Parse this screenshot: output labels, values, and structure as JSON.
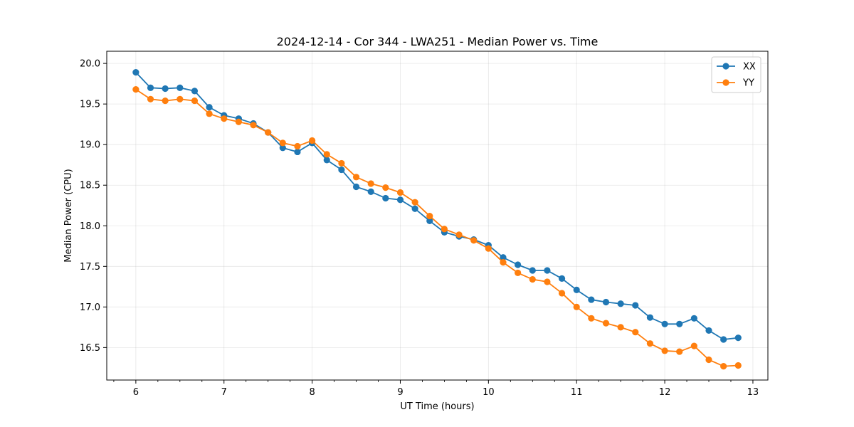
{
  "chart_data": {
    "type": "line",
    "title": "2024-12-14 - Cor 344 - LWA251 - Median Power vs. Time",
    "xlabel": "UT Time (hours)",
    "ylabel": "Median Power (CPU)",
    "xlim": [
      5.67,
      13.17
    ],
    "ylim": [
      16.1,
      20.15
    ],
    "xticks": [
      6,
      7,
      8,
      9,
      10,
      11,
      12,
      13
    ],
    "xtick_labels": [
      "6",
      "7",
      "8",
      "9",
      "10",
      "11",
      "12",
      "13"
    ],
    "xminor_step": 0.25,
    "yticks": [
      16.5,
      17.0,
      17.5,
      18.0,
      18.5,
      19.0,
      19.5,
      20.0
    ],
    "ytick_labels": [
      "16.5",
      "17.0",
      "17.5",
      "18.0",
      "18.5",
      "19.0",
      "19.5",
      "20.0"
    ],
    "grid": true,
    "legend_position": "top-right",
    "x": [
      6.0,
      6.1667,
      6.3333,
      6.5,
      6.6667,
      6.8333,
      7.0,
      7.1667,
      7.3333,
      7.5,
      7.6667,
      7.8333,
      8.0,
      8.1667,
      8.3333,
      8.5,
      8.6667,
      8.8333,
      9.0,
      9.1667,
      9.3333,
      9.5,
      9.6667,
      9.8333,
      10.0,
      10.1667,
      10.3333,
      10.5,
      10.6667,
      10.8333,
      11.0,
      11.1667,
      11.3333,
      11.5,
      11.6667,
      11.8333,
      12.0,
      12.1667,
      12.3333,
      12.5,
      12.6667,
      12.8333
    ],
    "series": [
      {
        "name": "XX",
        "color": "#1f77b4",
        "values": [
          19.89,
          19.7,
          19.69,
          19.7,
          19.66,
          19.46,
          19.36,
          19.32,
          19.26,
          19.15,
          18.96,
          18.91,
          19.02,
          18.81,
          18.69,
          18.48,
          18.42,
          18.34,
          18.32,
          18.21,
          18.06,
          17.92,
          17.87,
          17.83,
          17.76,
          17.61,
          17.52,
          17.45,
          17.45,
          17.35,
          17.21,
          17.09,
          17.06,
          17.04,
          17.02,
          16.87,
          16.79,
          16.79,
          16.86,
          16.71,
          16.6,
          16.62
        ]
      },
      {
        "name": "YY",
        "color": "#ff7f0e",
        "values": [
          19.68,
          19.56,
          19.54,
          19.56,
          19.54,
          19.38,
          19.32,
          19.28,
          19.24,
          19.15,
          19.02,
          18.98,
          19.05,
          18.88,
          18.77,
          18.6,
          18.52,
          18.47,
          18.41,
          18.29,
          18.12,
          17.96,
          17.89,
          17.82,
          17.72,
          17.55,
          17.42,
          17.34,
          17.31,
          17.17,
          17.0,
          16.86,
          16.8,
          16.75,
          16.69,
          16.55,
          16.46,
          16.45,
          16.52,
          16.35,
          16.27,
          16.28
        ]
      }
    ]
  }
}
